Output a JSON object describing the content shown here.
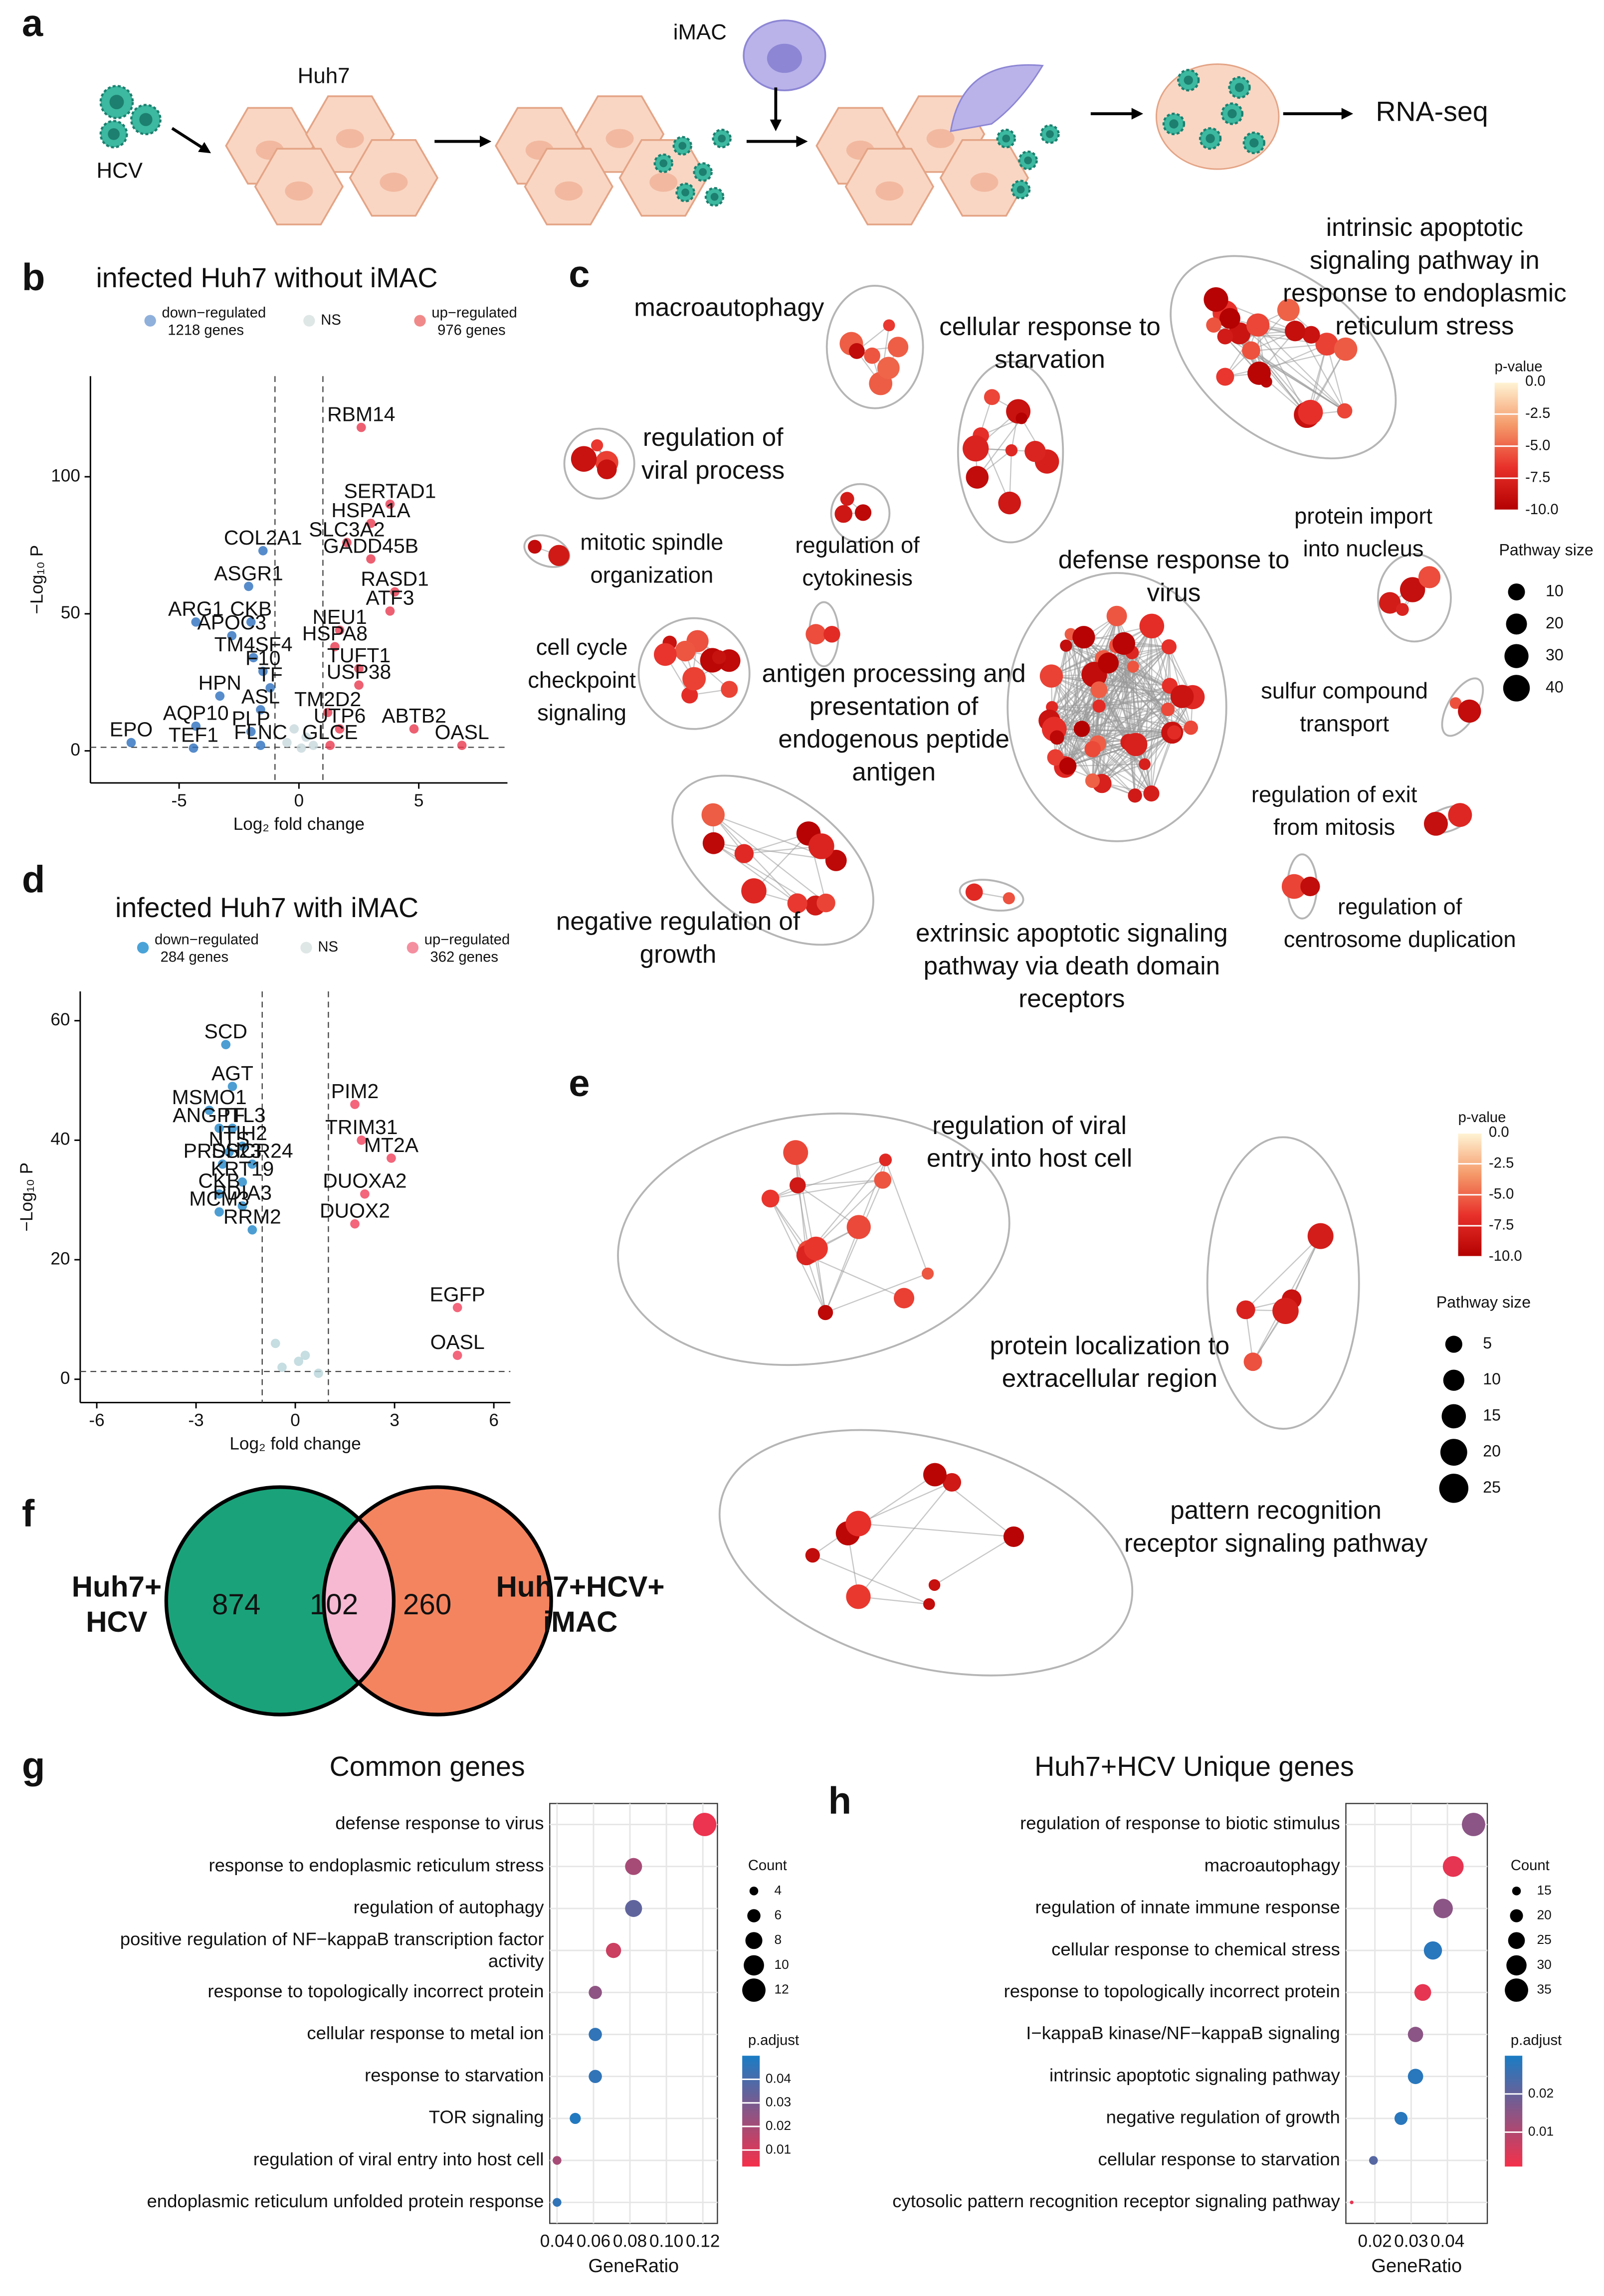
{
  "panel_labels": [
    "a",
    "b",
    "c",
    "d",
    "e",
    "f",
    "g",
    "h"
  ],
  "schematic": {
    "labels": [
      "HCV",
      "Huh7",
      "iMAC",
      "RNA-seq"
    ]
  },
  "chart_data": [
    {
      "type": "volcano",
      "title": "infected Huh7 without iMAC",
      "xlabel": "Log₂ fold change",
      "ylabel": "−Log₁₀ P",
      "xlim": [
        -8.7,
        8.7
      ],
      "ylim": [
        -11.7,
        136.7
      ],
      "xticks": [
        -5,
        0,
        5
      ],
      "yticks": [
        0,
        50,
        100
      ],
      "fc_cutoff": 1,
      "p_cutoff": 1.3,
      "series": [
        {
          "name": "down−regulated",
          "count_label": "1218 genes",
          "color": "#2c6fbe",
          "legend_color": "#8fb0db",
          "labels": [
            "COL2A1",
            "ASGR1",
            "ARG1",
            "CKB",
            "APOC3",
            "TM4SF4",
            "F10",
            "HPN",
            "TF",
            "ASL",
            "AQP10",
            "PLP",
            "EPO",
            "TEF1",
            "FLNC"
          ],
          "x": [
            -1.5,
            -2.1,
            -4.3,
            -2.0,
            -2.8,
            -1.9,
            -1.5,
            -3.3,
            -1.2,
            -1.6,
            -4.3,
            -2.0,
            -7.0,
            -4.4,
            -1.6
          ],
          "y": [
            73,
            60,
            47,
            47,
            42,
            34,
            29,
            20,
            23,
            15,
            9,
            7,
            3,
            1,
            2
          ]
        },
        {
          "name": "NS",
          "color": "#c8d8dc",
          "legend_color": "#dfe6e6",
          "x": [
            -0.5,
            0.3,
            0.6,
            -0.2,
            0.1
          ],
          "y": [
            3,
            5,
            2,
            8,
            1
          ]
        },
        {
          "name": "up−regulated",
          "count_label": "976 genes",
          "color": "#e8384f",
          "legend_color": "#f08a8a",
          "labels": [
            "RBM14",
            "SERTAD1",
            "HSPA1A",
            "SLC3A2",
            "GADD45B",
            "RASD1",
            "ATF3",
            "NEU1",
            "HSPA8",
            "TUFT1",
            "USP38",
            "TM2D2",
            "UTP6",
            "GLCE",
            "ABTB2",
            "OASL"
          ],
          "x": [
            2.6,
            3.8,
            3.0,
            2.0,
            3.0,
            4.0,
            3.8,
            1.7,
            1.5,
            2.5,
            2.5,
            1.2,
            1.7,
            1.3,
            4.8,
            6.8
          ],
          "y": [
            118,
            90,
            83,
            76,
            70,
            58,
            51,
            44,
            38,
            30,
            24,
            14,
            8,
            2,
            8,
            2
          ]
        }
      ]
    },
    {
      "type": "volcano",
      "title": "infected Huh7 with iMAC",
      "xlabel": "Log₂ fold change",
      "ylabel": "−Log₁₀ P",
      "xlim": [
        -6.5,
        6.5
      ],
      "ylim": [
        -3.9,
        64.9
      ],
      "xticks": [
        -6,
        -3,
        0,
        3,
        6
      ],
      "yticks": [
        0,
        20,
        40,
        60
      ],
      "fc_cutoff": 1,
      "p_cutoff": 1.3,
      "series": [
        {
          "name": "down−regulated",
          "count_label": "284 genes",
          "color": "#1f86c8",
          "legend_color": "#4aa3d8",
          "labels": [
            "SCD",
            "AGT",
            "MSMO1",
            "ANGPTL3",
            "TF",
            "ITIH2",
            "NTS",
            "PRSS23",
            "DHCR24",
            "KRT19",
            "CKB",
            "PDIA3",
            "MCM3",
            "RRM2"
          ],
          "x": [
            -2.1,
            -1.9,
            -2.6,
            -2.3,
            -1.9,
            -1.6,
            -2.0,
            -2.2,
            -1.3,
            -1.6,
            -2.3,
            -1.6,
            -2.3,
            -1.3
          ],
          "y": [
            56,
            49,
            45,
            42,
            42,
            39,
            38,
            36,
            36,
            33,
            31,
            29,
            28,
            25
          ]
        },
        {
          "name": "NS",
          "color": "#b8d5da",
          "legend_color": "#dfe6e6",
          "x": [
            -0.4,
            0.3,
            0.7,
            -0.6,
            0.1
          ],
          "y": [
            2,
            4,
            1,
            6,
            3
          ]
        },
        {
          "name": "up−regulated",
          "count_label": "362 genes",
          "color": "#f0405a",
          "legend_color": "#f48fa0",
          "labels": [
            "PIM2",
            "TRIM31",
            "MT2A",
            "DUOXA2",
            "DUOX2",
            "EGFP",
            "OASL"
          ],
          "x": [
            1.8,
            2.0,
            2.9,
            2.1,
            1.8,
            4.9,
            4.9
          ],
          "y": [
            46,
            40,
            37,
            31,
            26,
            12,
            4
          ]
        }
      ]
    },
    {
      "type": "venn",
      "sets": [
        {
          "name": "Huh7+\nHCV",
          "color": "#1aa37a"
        },
        {
          "name": "Huh7+HCV+\niMAC",
          "color": "#f4845f"
        }
      ],
      "intersection_color": "#f7b8d2",
      "values": [
        874,
        102,
        260
      ]
    },
    {
      "type": "dot",
      "title": "Common genes",
      "xlabel": "GeneRatio",
      "categories": [
        "defense response to virus",
        "response to endoplasmic reticulum stress",
        "regulation of autophagy",
        "positive regulation of NF−kappaB transcription factor\nactivity",
        "response to topologically incorrect protein",
        "cellular response to metal ion",
        "response to starvation",
        "TOR signaling",
        "regulation of viral entry into host cell",
        "endoplasmic reticulum unfolded protein response"
      ],
      "values": [
        0.121,
        0.082,
        0.082,
        0.071,
        0.061,
        0.061,
        0.061,
        0.05,
        0.04,
        0.04
      ],
      "counts": [
        12,
        8,
        8,
        7,
        6,
        6,
        6,
        5,
        4,
        4
      ],
      "padjust": [
        0.005,
        0.02,
        0.035,
        0.012,
        0.025,
        0.045,
        0.045,
        0.048,
        0.02,
        0.045
      ],
      "xlim": [
        0.036,
        0.128
      ],
      "xticks": [
        0.04,
        0.06,
        0.08,
        {
          "value": 0.1,
          "label": "0.10"
        },
        0.12
      ],
      "size_legend": {
        "title": "Count",
        "ticks": [
          4,
          6,
          8,
          10,
          12
        ]
      },
      "color_legend": {
        "title": "p.adjust",
        "lim": [
          0.003,
          0.05
        ],
        "ticks": [
          0.01,
          0.02,
          0.03,
          0.04
        ],
        "colors": [
          "#f5304a",
          "#1a7cc4"
        ]
      }
    },
    {
      "type": "dot",
      "title": "Huh7+HCV Unique genes",
      "xlabel": "GeneRatio",
      "categories": [
        "regulation of response to biotic stimulus",
        "macroautophagy",
        "regulation of innate immune response",
        "cellular response to chemical stress",
        "response to topologically incorrect protein",
        "I−kappaB kinase/NF−kappaB signaling",
        "intrinsic apoptotic signaling pathway",
        "negative regulation of growth",
        "cellular response to starvation",
        "cytosolic pattern recognition receptor signaling pathway"
      ],
      "values": [
        0.0472,
        0.0416,
        0.0388,
        0.036,
        0.0332,
        0.0312,
        0.0312,
        0.0272,
        0.0196,
        0.0136
      ],
      "counts": [
        35,
        31,
        29,
        27,
        25,
        23,
        23,
        20,
        15,
        10
      ],
      "padjust": [
        0.015,
        0.003,
        0.015,
        0.028,
        0.003,
        0.015,
        0.028,
        0.028,
        0.022,
        0.003
      ],
      "xlim": [
        0.012,
        0.051
      ],
      "xticks": [
        0.02,
        0.03,
        0.04
      ],
      "size_legend": {
        "title": "Count",
        "ticks": [
          15,
          20,
          25,
          30,
          35
        ]
      },
      "color_legend": {
        "title": "p.adjust",
        "lim": [
          0.001,
          0.03
        ],
        "ticks": [
          0.01,
          0.02
        ],
        "colors": [
          "#f5304a",
          "#1a7cc4"
        ]
      }
    }
  ],
  "networks": [
    {
      "clusters": [
        {
          "label": "macroautophagy",
          "color": "#000000"
        },
        {
          "label": "cellular response to\nstarvation",
          "color": "#000000"
        },
        {
          "label": "intrinsic apoptotic\nsignaling pathway in\nresponse to endoplasmic\nreticulum stress",
          "color": "#000000"
        },
        {
          "label": "regulation of\nviral process",
          "color": "#000000"
        },
        {
          "label": "mitotic spindle\norganization",
          "color": "#8a8a8a"
        },
        {
          "label": "regulation of\ncytokinesis",
          "color": "#8a8a8a"
        },
        {
          "label": "protein import\ninto nucleus",
          "color": "#8a8a8a"
        },
        {
          "label": "cell cycle\ncheckpoint\nsignaling",
          "color": "#8a8a8a"
        },
        {
          "label": "antigen processing and\npresentation of\nendogenous peptide\nantigen",
          "color": "#000000"
        },
        {
          "label": "defense response to\nvirus",
          "color": "#000000"
        },
        {
          "label": "sulfur compound\ntransport",
          "color": "#8a8a8a"
        },
        {
          "label": "regulation of exit\nfrom mitosis",
          "color": "#8a8a8a"
        },
        {
          "label": "regulation of\ncentrosome duplication",
          "color": "#8a8a8a"
        },
        {
          "label": "negative regulation of\ngrowth",
          "color": "#000000"
        },
        {
          "label": "extrinsic apoptotic signaling\npathway via death domain\nreceptors",
          "color": "#000000"
        }
      ],
      "color_legend": {
        "title": "p-value",
        "lim": [
          -10,
          0
        ],
        "ticks": [
          {
            "value": 0,
            "label": "0.0"
          },
          -2.5,
          {
            "value": -5,
            "label": "-5.0"
          },
          -7.5,
          {
            "value": -10,
            "label": "-10.0"
          }
        ],
        "colors": [
          "#b30000",
          "#e8302a",
          "#f59a6a",
          "#fff5d6"
        ]
      },
      "size_legend": {
        "title": "Pathway size",
        "ticks": [
          10,
          20,
          30,
          40
        ]
      }
    },
    {
      "clusters": [
        {
          "label": "regulation of viral\nentry into host cell",
          "color": "#000000"
        },
        {
          "label": "protein localization to\nextracellular region",
          "color": "#000000"
        },
        {
          "label": "pattern recognition\nreceptor signaling pathway",
          "color": "#000000"
        }
      ],
      "color_legend": {
        "title": "p-value",
        "lim": [
          -10,
          0
        ],
        "ticks": [
          {
            "value": 0,
            "label": "0.0"
          },
          -2.5,
          {
            "value": -5,
            "label": "-5.0"
          },
          -7.5,
          {
            "value": -10,
            "label": "-10.0"
          }
        ],
        "colors": [
          "#b30000",
          "#e8302a",
          "#f59a6a",
          "#fff5d6"
        ]
      },
      "size_legend": {
        "title": "Pathway size",
        "ticks": [
          5,
          10,
          15,
          20,
          25
        ]
      }
    }
  ]
}
